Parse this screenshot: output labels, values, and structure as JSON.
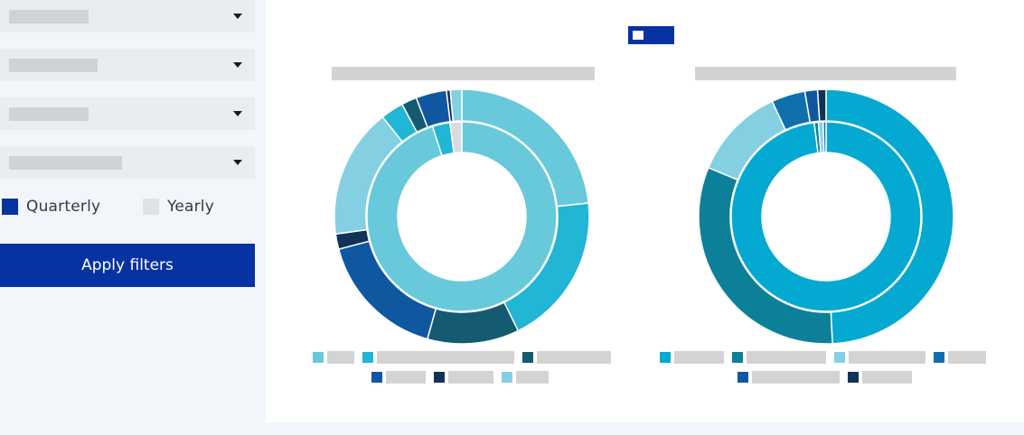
{
  "filters": {
    "dropdowns": [
      {
        "name": "filter-dropdown-1",
        "value": ""
      },
      {
        "name": "filter-dropdown-2",
        "value": ""
      },
      {
        "name": "filter-dropdown-3",
        "value": ""
      },
      {
        "name": "filter-dropdown-4",
        "value": ""
      }
    ],
    "period_options": [
      {
        "label": "Quarterly",
        "selected": true,
        "color": "#0633a1"
      },
      {
        "label": "Yearly",
        "selected": false,
        "color": "#dfe2e6"
      }
    ],
    "apply_label": "Apply filters"
  },
  "colors": {
    "accent": "#0633a1",
    "sidebar_bg": "#f2f6fa",
    "placeholder": "#d3d3d3"
  },
  "chart_data": [
    {
      "type": "pie",
      "title": "",
      "inner_ring": [
        {
          "value": 95,
          "color": "#68c9da"
        },
        {
          "value": 3,
          "color": "#21b5d6"
        },
        {
          "value": 2,
          "color": "#d9dcdf"
        }
      ],
      "outer_ring": [
        {
          "value": 24,
          "color": "#68c9da"
        },
        {
          "value": 20,
          "color": "#21b5d6"
        },
        {
          "value": 12,
          "color": "#145b72"
        },
        {
          "value": 17,
          "color": "#0f58a0"
        },
        {
          "value": 2,
          "color": "#11335a"
        },
        {
          "value": 17,
          "color": "#84d0e2"
        },
        {
          "value": 3,
          "color": "#21b5d6"
        },
        {
          "value": 2,
          "color": "#145b72"
        },
        {
          "value": 4,
          "color": "#0f58a0"
        },
        {
          "value": 0.5,
          "color": "#11335a"
        },
        {
          "value": 1.5,
          "color": "#84d0e2"
        }
      ],
      "legend": [
        {
          "color": "#68c9da",
          "label": ""
        },
        {
          "color": "#21b5d6",
          "label": ""
        },
        {
          "color": "#145b72",
          "label": ""
        },
        {
          "color": "#0f58a0",
          "label": ""
        },
        {
          "color": "#11335a",
          "label": ""
        },
        {
          "color": "#84d0e2",
          "label": ""
        }
      ]
    },
    {
      "type": "pie",
      "title": "",
      "inner_ring": [
        {
          "value": 98,
          "color": "#04a9d1"
        },
        {
          "value": 0.7,
          "color": "#0d8099"
        },
        {
          "value": 0.8,
          "color": "#84d0e2"
        },
        {
          "value": 0.5,
          "color": "#1070ad"
        }
      ],
      "outer_ring": [
        {
          "value": 46,
          "color": "#04a9d1"
        },
        {
          "value": 30,
          "color": "#0d8099"
        },
        {
          "value": 11,
          "color": "#84d0e2"
        },
        {
          "value": 4,
          "color": "#1070ad"
        },
        {
          "value": 1.5,
          "color": "#0f58a0"
        },
        {
          "value": 1,
          "color": "#11335a"
        }
      ],
      "legend": [
        {
          "color": "#04a9d1",
          "label": ""
        },
        {
          "color": "#0d8099",
          "label": ""
        },
        {
          "color": "#84d0e2",
          "label": ""
        },
        {
          "color": "#1070ad",
          "label": ""
        },
        {
          "color": "#0f58a0",
          "label": ""
        },
        {
          "color": "#11335a",
          "label": ""
        }
      ]
    }
  ]
}
